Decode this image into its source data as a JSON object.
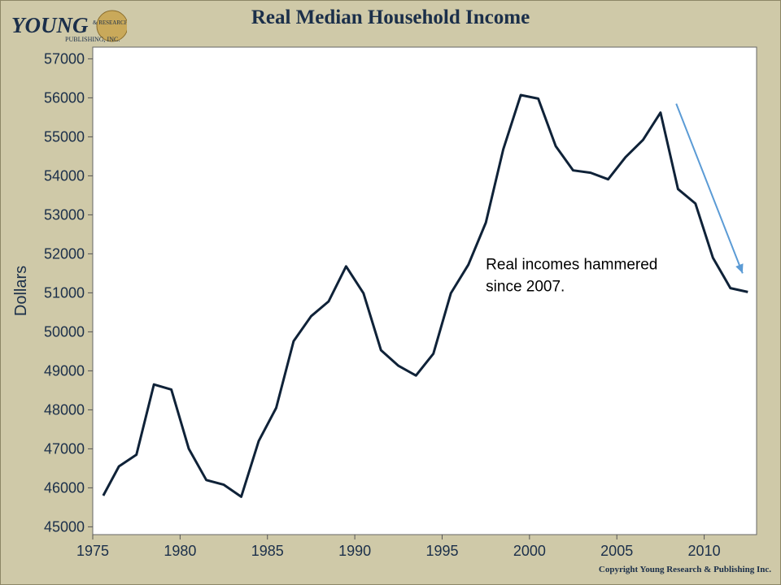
{
  "header": {
    "logo_text": "YOUNG",
    "logo_sub1": "& RESEARCH",
    "logo_sub2": "PUBLISHING, INC.",
    "title": "Real Median Household Income"
  },
  "footer": {
    "copyright": "Copyright Young Research & Publishing Inc."
  },
  "colors": {
    "background": "#cfc9a8",
    "plot_bg": "#ffffff",
    "line": "#0f2238",
    "arrow": "#5b9bd5",
    "text": "#1b2f4a"
  },
  "chart_data": {
    "type": "line",
    "title": "Real Median Household Income",
    "ylabel": "Dollars",
    "xlabel": "",
    "xlim": [
      1975,
      2013
    ],
    "ylim": [
      44800,
      57300
    ],
    "xticks": [
      1975,
      1980,
      1985,
      1990,
      1995,
      2000,
      2005,
      2010
    ],
    "yticks": [
      45000,
      46000,
      47000,
      48000,
      49000,
      50000,
      51000,
      52000,
      53000,
      54000,
      55000,
      56000,
      57000
    ],
    "grid": false,
    "annotation": {
      "text_lines": [
        "Real incomes hammered",
        "since 2007."
      ],
      "x": 1997.5,
      "y": 51600
    },
    "arrow": {
      "from": [
        2008.4,
        55850
      ],
      "to": [
        2012.2,
        51500
      ]
    },
    "series": [
      {
        "x": [
          1975.6,
          1976.5,
          1977.5,
          1978.5,
          1979.5,
          1980.5,
          1981.5,
          1982.5,
          1983.5,
          1984.5,
          1985.5,
          1986.5,
          1987.5,
          1988.5,
          1989.5,
          1990.5,
          1991.5,
          1992.5,
          1993.5,
          1994.5,
          1995.5,
          1996.5,
          1997.5,
          1998.5,
          1999.5,
          2000.5,
          2001.5,
          2002.5,
          2003.5,
          2004.5,
          2005.5,
          2006.5,
          2007.5,
          2008.5,
          2009.5,
          2010.5,
          2011.5,
          2012.5
        ],
        "values": [
          45800,
          46550,
          46850,
          48650,
          48520,
          47000,
          46200,
          46080,
          45770,
          47200,
          48050,
          49760,
          50400,
          50780,
          51680,
          50990,
          49530,
          49130,
          48880,
          49440,
          50990,
          51720,
          52800,
          54680,
          56070,
          55980,
          54760,
          54140,
          54080,
          53910,
          54480,
          54920,
          55620,
          53660,
          53290,
          51900,
          51120,
          51020
        ]
      }
    ]
  }
}
